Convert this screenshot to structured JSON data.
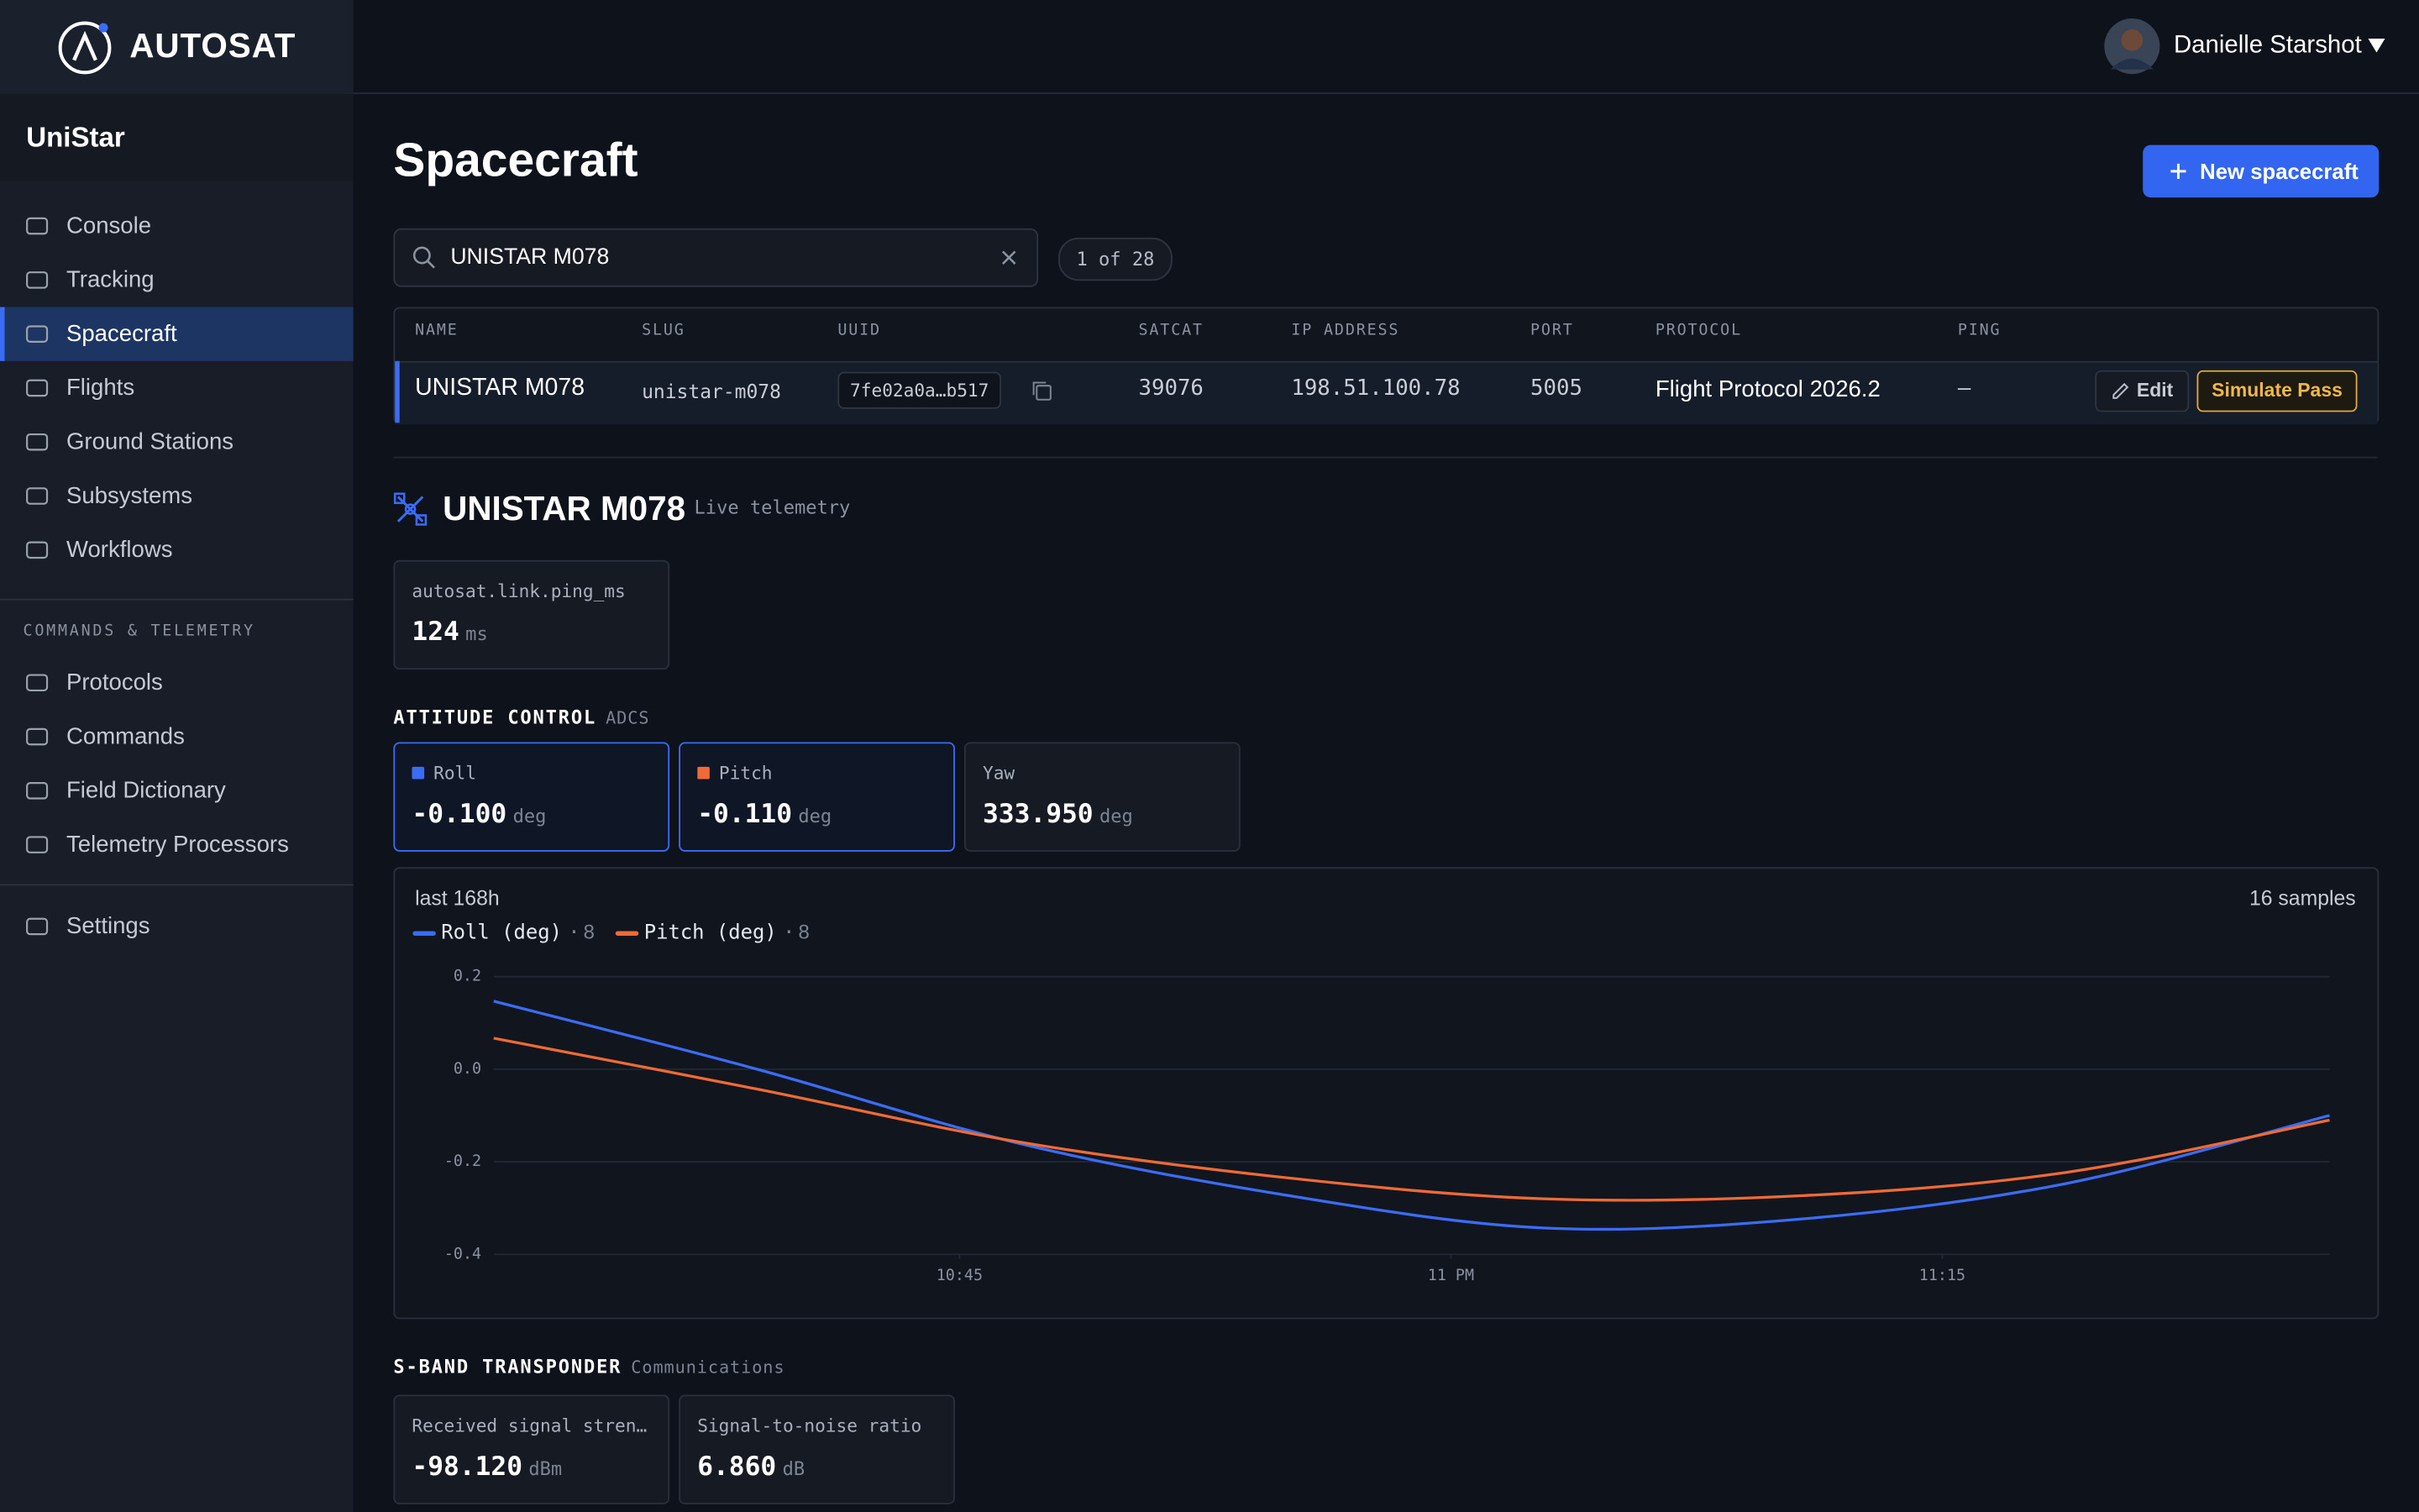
{
  "brand": "AUTOSAT",
  "user": {
    "name": "Danielle Starshot"
  },
  "sidebar": {
    "org": "UniStar",
    "nav": [
      "Console",
      "Tracking",
      "Spacecraft",
      "Flights",
      "Ground Stations",
      "Subsystems",
      "Workflows"
    ],
    "section": "COMMANDS & TELEMETRY",
    "nav2": [
      "Protocols",
      "Commands",
      "Field Dictionary",
      "Telemetry Processors"
    ],
    "settings": "Settings"
  },
  "page": {
    "title": "Spacecraft",
    "new_button": "New spacecraft"
  },
  "search": {
    "query": "UNISTAR M078",
    "count": "1 of 28"
  },
  "table": {
    "headers": [
      "NAME",
      "SLUG",
      "UUID",
      "SATCAT",
      "IP ADDRESS",
      "PORT",
      "PROTOCOL",
      "PING"
    ],
    "rows": [
      [
        "UNISTAR M078",
        "unistar-m078",
        "7fe02a0a…b517",
        "39076",
        "198.51.100.78",
        "5005",
        "Flight Protocol 2026.2",
        "–"
      ]
    ],
    "actions": [
      "Edit",
      "Simulate Pass"
    ]
  },
  "detail": {
    "name": "UNISTAR M078",
    "subtitle": "Live telemetry",
    "ping": {
      "label": "autosat.link.ping_ms",
      "value": "124",
      "unit": "ms"
    }
  },
  "attitude": {
    "title": "ATTITUDE CONTROL",
    "tag": "ADCS",
    "cards": [
      {
        "label": "Roll",
        "value": "-0.100",
        "unit": "deg",
        "color": "#3b6cf5"
      },
      {
        "label": "Pitch",
        "value": "-0.110",
        "unit": "deg",
        "color": "#f06a35"
      },
      {
        "label": "Yaw",
        "value": "333.950",
        "unit": "deg"
      }
    ]
  },
  "chart_data": {
    "type": "line",
    "range_label": "last 168h",
    "samples_label": "16 samples",
    "x": [
      22.513,
      22.647,
      22.78,
      22.913,
      23.047,
      23.18,
      23.313,
      23.447
    ],
    "xlim": [
      22.513,
      23.447
    ],
    "xticks": [
      {
        "value": 22.75,
        "label": "10:45"
      },
      {
        "value": 23,
        "label": "11 PM"
      },
      {
        "value": 23.25,
        "label": "11:15"
      }
    ],
    "ylim": [
      -0.4,
      0.2
    ],
    "yticks": [
      0.2,
      {
        "value": 0,
        "label": "0.0"
      },
      -0.2,
      -0.4
    ],
    "grid": true,
    "series": [
      {
        "name": "Roll (deg)",
        "count": 8,
        "color": "#3b6cf5",
        "values": [
          0.147,
          0.0,
          -0.16,
          -0.27,
          -0.343,
          -0.323,
          -0.247,
          -0.1
        ]
      },
      {
        "name": "Pitch (deg)",
        "count": 8,
        "color": "#f06a35",
        "values": [
          0.067,
          -0.043,
          -0.157,
          -0.233,
          -0.28,
          -0.273,
          -0.223,
          -0.11
        ]
      }
    ]
  },
  "transponder": {
    "title": "S-BAND TRANSPONDER",
    "tag": "Communications",
    "cards": [
      {
        "label": "Received signal streng…",
        "value": "-98.120",
        "unit": "dBm"
      },
      {
        "label": "Signal-to-noise ratio",
        "value": "6.860",
        "unit": "dB"
      }
    ]
  }
}
